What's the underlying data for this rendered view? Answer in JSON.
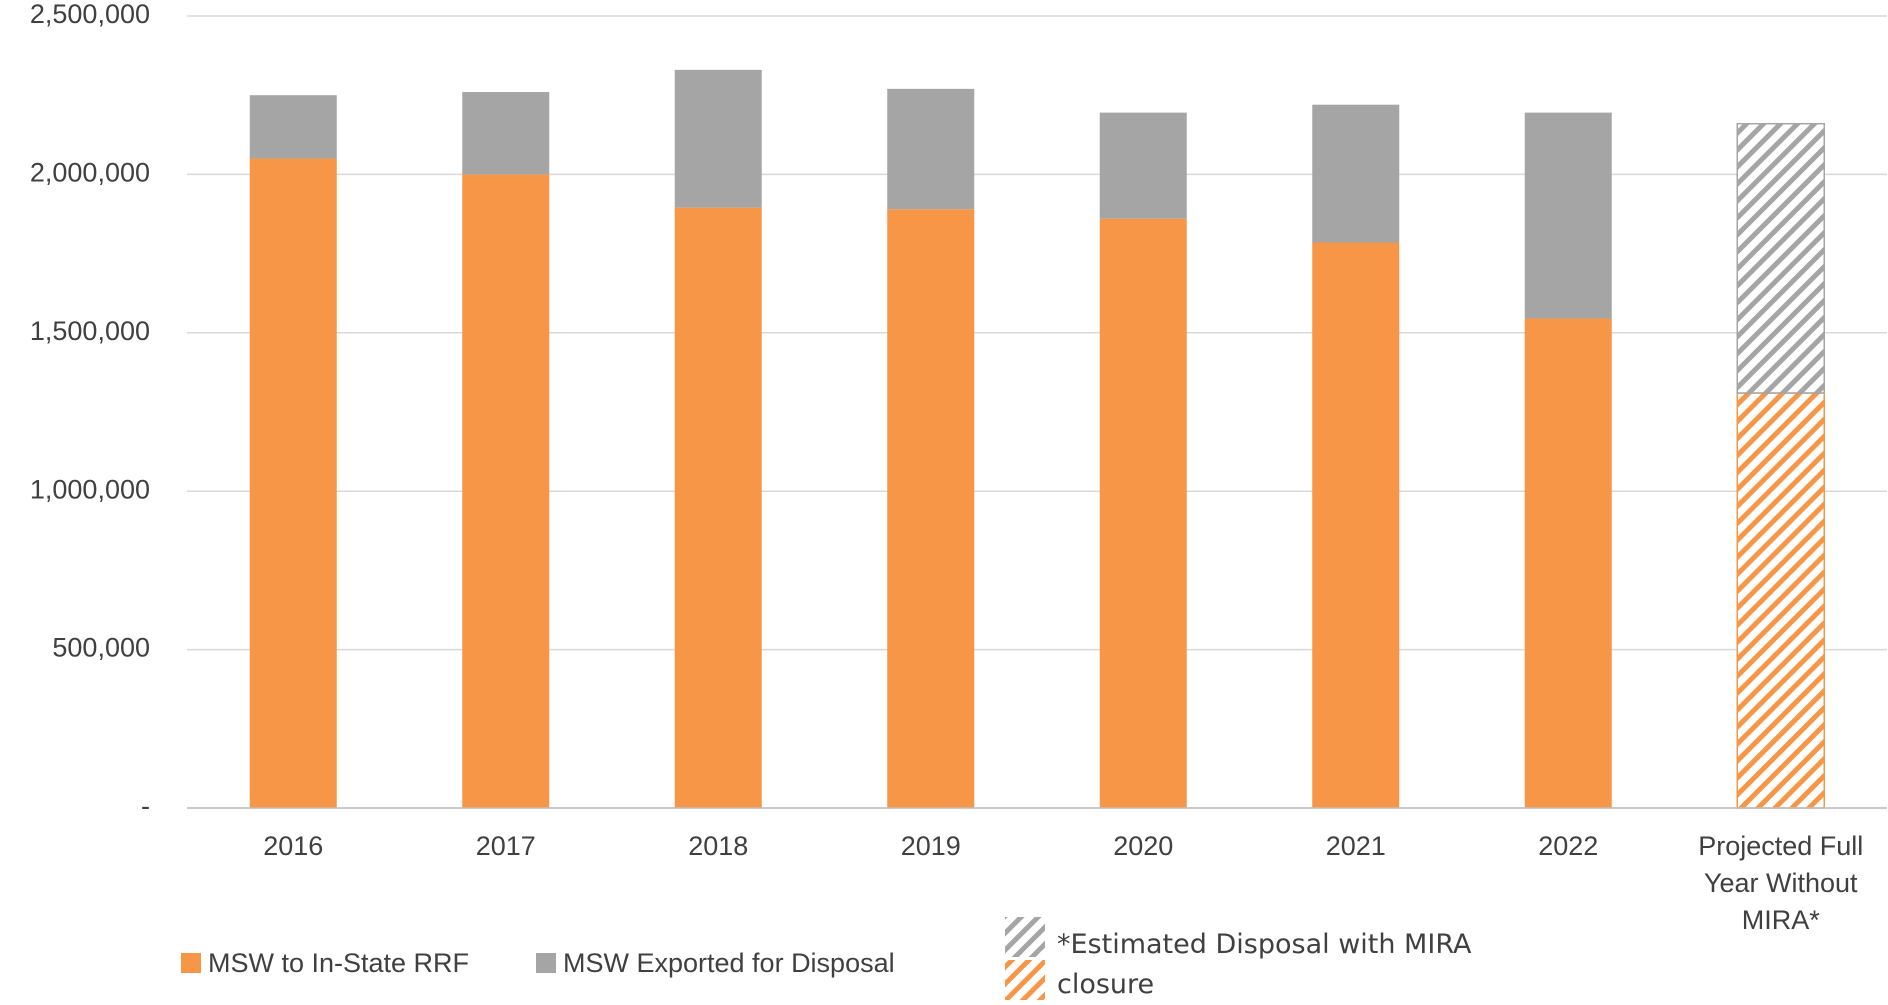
{
  "chart_data": {
    "type": "stacked_bar",
    "categories": [
      "2016",
      "2017",
      "2018",
      "2019",
      "2020",
      "2021",
      "2022",
      "Projected Full Year  Without MIRA*"
    ],
    "series": [
      {
        "name": "MSW to In-State RRF",
        "color": "#f79646",
        "values": [
          2050000,
          2000000,
          1895000,
          1890000,
          1860000,
          1785000,
          1545000,
          1310000
        ]
      },
      {
        "name": "MSW Exported for Disposal",
        "color": "#a5a5a5",
        "values": [
          200000,
          260000,
          435000,
          380000,
          335000,
          435000,
          650000,
          850000
        ]
      }
    ],
    "hatched": [
      false,
      false,
      false,
      false,
      false,
      false,
      false,
      true
    ],
    "hatch_legend": "*Estimated Disposal with MIRA closure",
    "ylim": [
      0,
      2500000
    ],
    "yticks": [
      {
        "value": 0,
        "label": "-"
      },
      {
        "value": 500000,
        "label": "500,000"
      },
      {
        "value": 1000000,
        "label": "1,000,000"
      },
      {
        "value": 1500000,
        "label": "1,500,000"
      },
      {
        "value": 2000000,
        "label": "2,000,000"
      },
      {
        "value": 2500000,
        "label": "2,500,000"
      }
    ],
    "grid": true,
    "legend": "bottom"
  }
}
